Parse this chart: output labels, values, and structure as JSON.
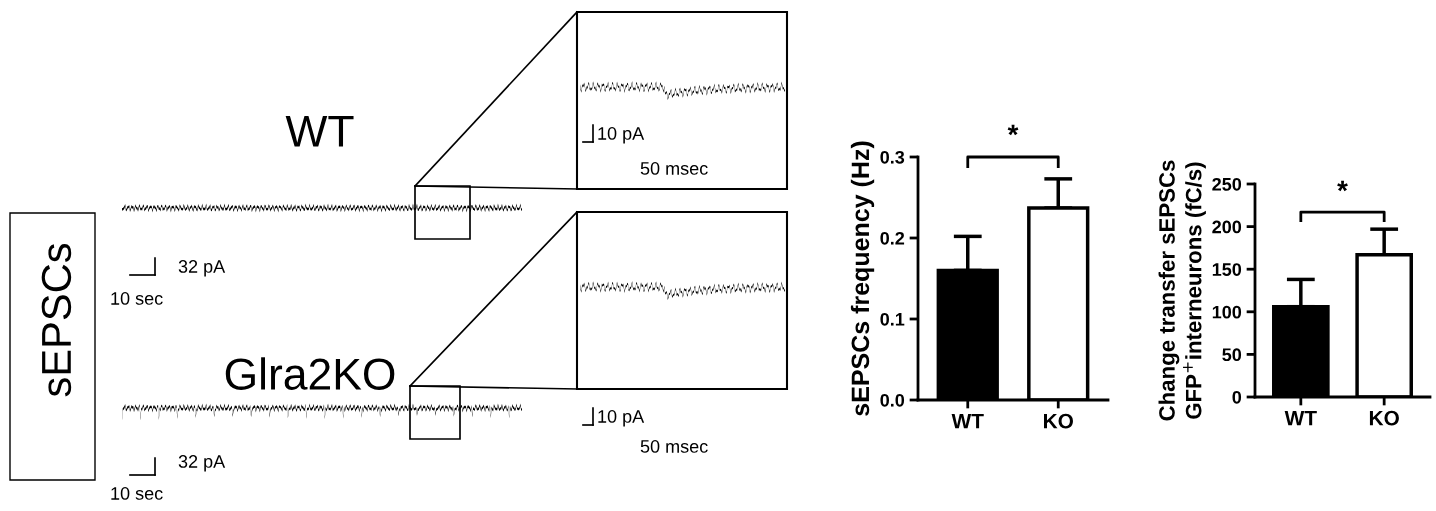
{
  "chart_data": [
    {
      "type": "other",
      "annotations": [
        "sEPSCs",
        "WT",
        "32 pA",
        "10 sec",
        "10 pA",
        "50 msec",
        "Glra2KO",
        "32 pA",
        "10 sec",
        "10 pA",
        "50 msec"
      ]
    },
    {
      "type": "bar",
      "ylabel": "sEPSCs frequency (Hz)",
      "categories": [
        "WT",
        "KO"
      ],
      "values": [
        0.16,
        0.237
      ],
      "colors": [
        "#000000",
        "#ffffff"
      ],
      "errors": [
        [
          0.16,
          0.202
        ],
        [
          0.237,
          0.273
        ]
      ],
      "ylim": [
        0,
        0.3
      ],
      "yticks": [
        {
          "value": 0,
          "label": "0.0"
        },
        0.1,
        0.2,
        0.3
      ],
      "grid": false,
      "annotations": [
        "*"
      ]
    },
    {
      "type": "bar",
      "ylabel": "Change transfer sEPSCs\nGFP$^{+}$interneurons (fC/s)",
      "categories": [
        "WT",
        "KO"
      ],
      "values": [
        106,
        167
      ],
      "colors": [
        "#000000",
        "#ffffff"
      ],
      "errors": [
        [
          106,
          138
        ],
        [
          167,
          197
        ]
      ],
      "ylim": [
        0,
        250
      ],
      "yticks": [
        0,
        50,
        100,
        150,
        200,
        250
      ],
      "grid": false,
      "annotations": [
        "*"
      ]
    }
  ]
}
